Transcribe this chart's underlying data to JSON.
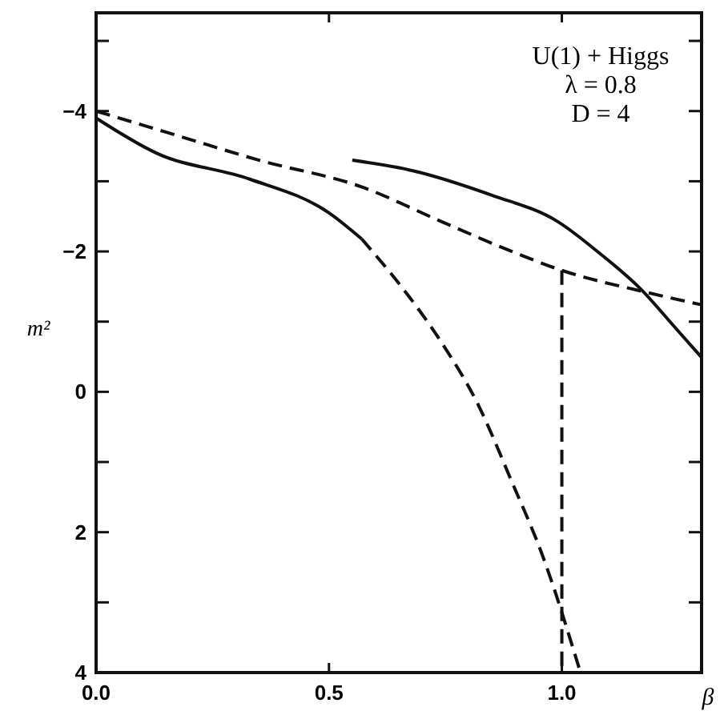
{
  "chart_data": {
    "type": "line",
    "xlabel": "β",
    "ylabel": "m²",
    "annotations": [
      "U(1) + Higgs",
      "λ = 0.8",
      "D = 4"
    ],
    "xlim": [
      0,
      1.3
    ],
    "ylim": [
      4,
      -5.4
    ],
    "xticks": [
      {
        "value": 0,
        "label": "0.0"
      },
      {
        "value": 0.5,
        "label": "0.5"
      },
      {
        "value": 1,
        "label": "1.0"
      }
    ],
    "yticks": [
      {
        "value": -5,
        "label": null
      },
      {
        "value": -4,
        "label": "−4"
      },
      {
        "value": -3,
        "label": null
      },
      {
        "value": -2,
        "label": "−2"
      },
      {
        "value": -1,
        "label": null
      },
      {
        "value": 0,
        "label": "0"
      },
      {
        "value": 1,
        "label": null
      },
      {
        "value": 2,
        "label": "2"
      },
      {
        "value": 3,
        "label": null
      },
      {
        "value": 4,
        "label": "4"
      }
    ],
    "grid": false,
    "marker": "none",
    "series": [
      {
        "color": "#111111",
        "line_style": "solid",
        "x": [
          0,
          0.13,
          0.33,
          0.5,
          0.57
        ],
        "values": [
          -3.9,
          -3.4,
          -3.03,
          -2.55,
          -2.18
        ]
      },
      {
        "color": "#111111",
        "line_style": "dashed",
        "x": [
          0.57,
          0.66,
          0.74,
          0.82,
          0.89,
          0.96,
          1.04
        ],
        "values": [
          -2.18,
          -1.46,
          -0.72,
          0.18,
          1.24,
          2.36,
          4.0
        ]
      },
      {
        "color": "#111111",
        "line_style": "dashed",
        "x": [
          0,
          0.17,
          0.35,
          0.57,
          0.74,
          0.9,
          1.0,
          1.18,
          1.3
        ],
        "values": [
          -4.0,
          -3.66,
          -3.3,
          -2.92,
          -2.43,
          -1.98,
          -1.73,
          -1.42,
          -1.24
        ]
      },
      {
        "color": "#111111",
        "line_style": "solid",
        "x": [
          0.55,
          0.68,
          0.85,
          0.99,
          1.08,
          1.17,
          1.24,
          1.3
        ],
        "values": [
          -3.3,
          -3.15,
          -2.8,
          -2.43,
          -1.98,
          -1.46,
          -0.94,
          -0.49
        ]
      },
      {
        "color": "#111111",
        "line_style": "dashed",
        "x": [
          1,
          1
        ],
        "values": [
          -1.73,
          4
        ]
      }
    ]
  }
}
